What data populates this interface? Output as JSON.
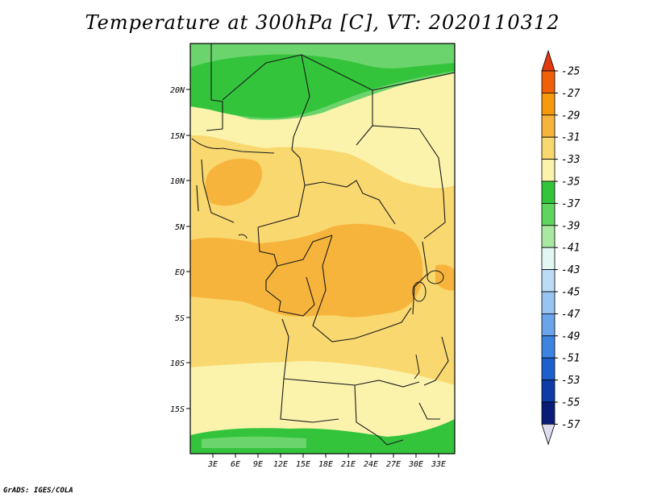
{
  "title": "Temperature at 300hPa [C], VT: 2020110312",
  "footer": "GrADS: IGES/COLA",
  "map": {
    "lat_labels": [
      "20N",
      "15N",
      "10N",
      "5N",
      "EQ",
      "5S",
      "10S",
      "15S"
    ],
    "lon_labels": [
      "3E",
      "6E",
      "9E",
      "12E",
      "15E",
      "18E",
      "21E",
      "24E",
      "27E",
      "30E",
      "33E"
    ]
  },
  "colorbar": {
    "labels": [
      "-25",
      "-27",
      "-29",
      "-31",
      "-33",
      "-35",
      "-37",
      "-39",
      "-41",
      "-43",
      "-45",
      "-47",
      "-49",
      "-51",
      "-53",
      "-55",
      "-57"
    ],
    "colors": [
      "#e23a10",
      "#f06008",
      "#f59a0c",
      "#f6b43c",
      "#f9d870",
      "#fbf3ac",
      "#33c43c",
      "#5fd45f",
      "#a8e8a0",
      "#e2f6f4",
      "#bcdcf6",
      "#98c4f0",
      "#6aa4ea",
      "#3c84e0",
      "#1c60cc",
      "#0e3ca6",
      "#081c78",
      "#ddddf0"
    ]
  },
  "colors": {
    "green_dark": "#33c43c",
    "green_light": "#6cd46c",
    "pale_yellow": "#fbf3ac",
    "yellow": "#f9d870",
    "orange": "#f6b43c"
  }
}
